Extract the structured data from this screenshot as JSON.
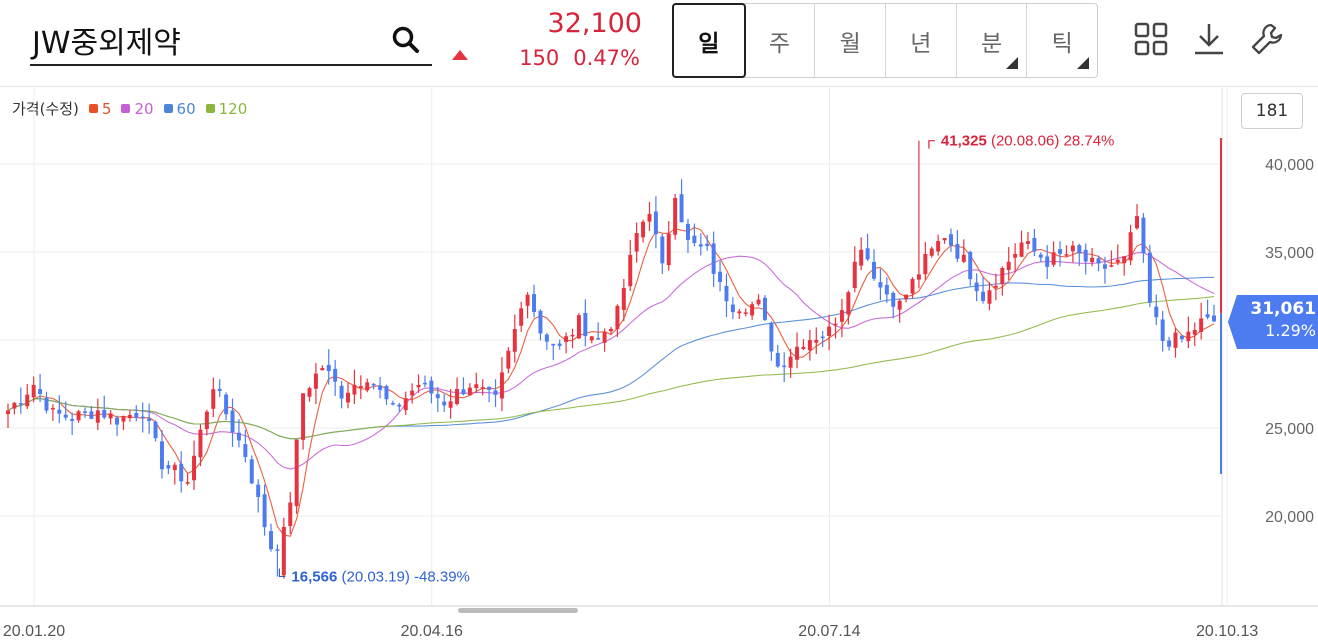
{
  "header": {
    "stock_name": "JW중외제약",
    "price": "32,100",
    "change_amount": "150",
    "change_percent": "0.47%",
    "direction": "up",
    "up_color": "#d8243a"
  },
  "period_tabs": [
    {
      "label": "일",
      "active": true,
      "has_submenu": false
    },
    {
      "label": "주",
      "active": false,
      "has_submenu": false
    },
    {
      "label": "월",
      "active": false,
      "has_submenu": false
    },
    {
      "label": "년",
      "active": false,
      "has_submenu": false
    },
    {
      "label": "분",
      "active": false,
      "has_submenu": true
    },
    {
      "label": "틱",
      "active": false,
      "has_submenu": true
    }
  ],
  "toolbar": {
    "icons": [
      "grid-layout-icon",
      "download-icon",
      "settings-wrench-icon"
    ]
  },
  "legend": {
    "label": "가격(수정)",
    "ma": [
      {
        "period": "5",
        "color": "#e8502a"
      },
      {
        "period": "20",
        "color": "#c45fd6"
      },
      {
        "period": "60",
        "color": "#4c87d6"
      },
      {
        "period": "120",
        "color": "#8cb53f"
      }
    ]
  },
  "count_box": "181",
  "current_label": {
    "value": "31,061",
    "percent": "1.29%",
    "color": "#4d7cf0"
  },
  "chart_data": {
    "type": "candlestick",
    "y_ticks": [
      "40,000",
      "35,000",
      "25,000",
      "20,000"
    ],
    "y_tick_values": [
      40000,
      35000,
      25000,
      20000
    ],
    "x_ticks": [
      "20.01.20",
      "20.04.16",
      "20.07.14",
      "20.10.13"
    ],
    "x_tick_index": [
      0,
      62,
      124,
      186
    ],
    "ylim": [
      16000,
      42500
    ],
    "up_color": "#e5343f",
    "down_color": "#4d7cf0",
    "high_annotation": {
      "value": 41325,
      "text_value": "41,325",
      "text_date": "(20.08.06)",
      "text_pct": "28.74%",
      "index": 142
    },
    "low_annotation": {
      "value": 16566,
      "text_value": "16,566",
      "text_date": "(20.03.19)",
      "text_pct": "-48.39%",
      "index": 42
    },
    "current_price_value": 31061,
    "waypoints": [
      [
        0,
        26000
      ],
      [
        4,
        27500
      ],
      [
        7,
        25800
      ],
      [
        10,
        25600
      ],
      [
        14,
        26000
      ],
      [
        17,
        25500
      ],
      [
        21,
        26000
      ],
      [
        24,
        23000
      ],
      [
        28,
        22000
      ],
      [
        32,
        27500
      ],
      [
        35,
        25000
      ],
      [
        37,
        23500
      ],
      [
        40,
        19500
      ],
      [
        42,
        17000
      ],
      [
        44,
        21000
      ],
      [
        46,
        27000
      ],
      [
        49,
        28500
      ],
      [
        52,
        27000
      ],
      [
        56,
        28000
      ],
      [
        60,
        26000
      ],
      [
        64,
        27500
      ],
      [
        68,
        26500
      ],
      [
        72,
        27500
      ],
      [
        76,
        26500
      ],
      [
        79,
        30500
      ],
      [
        81,
        33000
      ],
      [
        83,
        30500
      ],
      [
        86,
        29500
      ],
      [
        89,
        31000
      ],
      [
        92,
        30000
      ],
      [
        95,
        31500
      ],
      [
        98,
        36000
      ],
      [
        100,
        37500
      ],
      [
        102,
        34000
      ],
      [
        104,
        38500
      ],
      [
        106,
        35500
      ],
      [
        109,
        35000
      ],
      [
        111,
        33000
      ],
      [
        113,
        32000
      ],
      [
        117,
        32000
      ],
      [
        120,
        28500
      ],
      [
        124,
        30000
      ],
      [
        128,
        30500
      ],
      [
        130,
        32000
      ],
      [
        133,
        35500
      ],
      [
        136,
        33000
      ],
      [
        139,
        32000
      ],
      [
        143,
        34500
      ],
      [
        146,
        36000
      ],
      [
        149,
        34500
      ],
      [
        152,
        32500
      ],
      [
        155,
        34000
      ],
      [
        158,
        35500
      ],
      [
        162,
        34500
      ],
      [
        166,
        35000
      ],
      [
        170,
        34000
      ],
      [
        174,
        34500
      ],
      [
        176,
        37000
      ],
      [
        178,
        32000
      ],
      [
        180,
        30000
      ],
      [
        183,
        30000
      ],
      [
        186,
        31000
      ],
      [
        188,
        31061
      ]
    ],
    "ma_weights": [
      5,
      20,
      60,
      120
    ]
  }
}
